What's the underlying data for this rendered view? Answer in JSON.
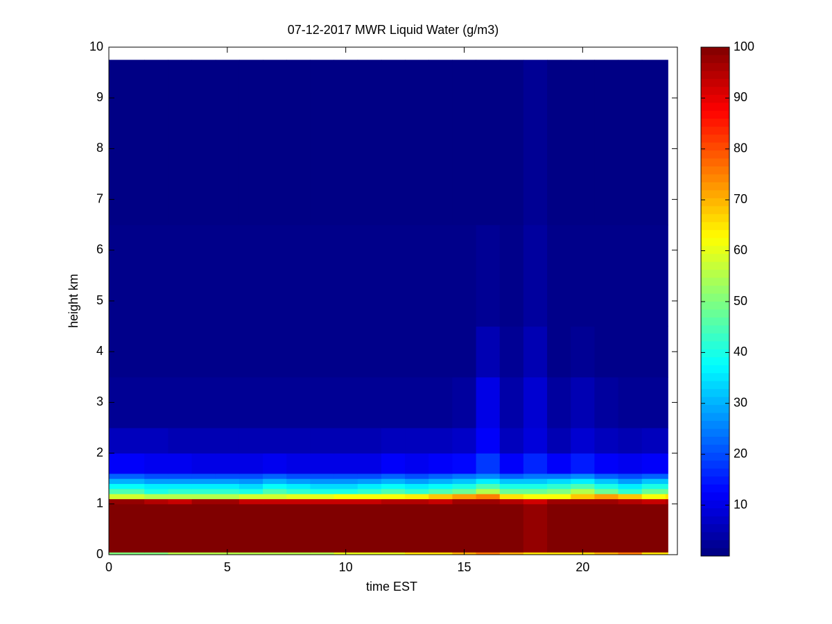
{
  "chart_data": {
    "type": "heatmap",
    "title": "07-12-2017 MWR Liquid Water (g/m3)",
    "x_label": "time EST",
    "y_label": "height km",
    "xlim": [
      0,
      24
    ],
    "ylim": [
      0,
      10
    ],
    "xticks": [
      0,
      5,
      10,
      15,
      20
    ],
    "yticks": [
      0,
      1,
      2,
      3,
      4,
      5,
      6,
      7,
      8,
      9,
      10
    ],
    "colormap": "jet",
    "clim": [
      0,
      100
    ],
    "cticks": [
      10,
      20,
      30,
      40,
      50,
      60,
      70,
      80,
      90,
      100
    ],
    "xbins": [
      0,
      1.5,
      2.5,
      3.5,
      4.5,
      5.5,
      6.5,
      7.5,
      8.5,
      9.5,
      10.5,
      11.5,
      12.5,
      13.5,
      14.5,
      15.5,
      16.5,
      17.5,
      18.5,
      19.5,
      20.5,
      21.5,
      22.5,
      23.5,
      23.6
    ],
    "ybins": [
      0,
      0.05,
      1.0,
      1.1,
      1.2,
      1.3,
      1.4,
      1.5,
      1.6,
      2.0,
      2.5,
      3.5,
      4.5,
      6.5,
      9.75
    ],
    "z": [
      [
        50,
        50,
        55,
        55,
        55,
        55,
        55,
        55,
        55,
        60,
        60,
        60,
        65,
        65,
        70,
        75,
        70,
        65,
        65,
        65,
        70,
        75,
        65,
        65
      ],
      [
        100,
        100,
        100,
        100,
        100,
        100,
        100,
        100,
        100,
        100,
        100,
        100,
        100,
        100,
        100,
        100,
        100,
        98,
        100,
        100,
        100,
        100,
        100,
        100
      ],
      [
        98,
        95,
        93,
        97,
        97,
        93,
        93,
        93,
        93,
        93,
        93,
        95,
        95,
        93,
        97,
        97,
        95,
        92,
        97,
        97,
        97,
        95,
        93,
        95
      ],
      [
        58,
        55,
        55,
        55,
        55,
        58,
        58,
        60,
        60,
        62,
        62,
        62,
        64,
        68,
        72,
        75,
        65,
        62,
        62,
        68,
        72,
        68,
        62,
        65
      ],
      [
        45,
        40,
        42,
        42,
        42,
        40,
        45,
        42,
        40,
        40,
        42,
        45,
        42,
        45,
        48,
        55,
        48,
        48,
        50,
        55,
        48,
        42,
        48,
        48
      ],
      [
        38,
        36,
        36,
        36,
        36,
        34,
        38,
        36,
        34,
        34,
        36,
        38,
        36,
        38,
        40,
        45,
        40,
        40,
        42,
        45,
        40,
        36,
        40,
        40
      ],
      [
        30,
        28,
        28,
        28,
        28,
        27,
        30,
        28,
        27,
        27,
        28,
        30,
        28,
        30,
        32,
        36,
        32,
        32,
        34,
        36,
        32,
        28,
        32,
        32
      ],
      [
        22,
        20,
        20,
        20,
        20,
        20,
        22,
        20,
        20,
        20,
        20,
        22,
        20,
        22,
        24,
        26,
        22,
        24,
        24,
        26,
        22,
        20,
        22,
        22
      ],
      [
        12,
        11,
        11,
        10,
        10,
        10,
        11,
        10,
        10,
        10,
        10,
        12,
        11,
        12,
        13,
        18,
        12,
        16,
        12,
        15,
        12,
        11,
        12,
        12
      ],
      [
        6,
        6,
        5,
        5,
        5,
        5,
        5,
        5,
        5,
        5,
        5,
        6,
        6,
        6,
        7,
        12,
        6,
        9,
        5,
        8,
        6,
        5,
        6,
        6
      ],
      [
        2,
        2,
        2,
        2,
        2,
        2,
        2,
        2,
        2,
        2,
        2,
        2,
        2,
        2,
        3,
        10,
        4,
        8,
        3,
        5,
        3,
        2,
        2,
        2
      ],
      [
        1,
        1,
        1,
        1,
        1,
        1,
        1,
        1,
        1,
        1,
        1,
        1,
        1,
        1,
        1,
        5,
        2,
        5,
        1,
        2,
        1,
        1,
        1,
        1
      ],
      [
        1,
        1,
        1,
        1,
        1,
        1,
        1,
        1,
        1,
        1,
        1,
        1,
        1,
        1,
        1,
        2,
        1,
        3,
        1,
        1,
        1,
        1,
        1,
        1
      ],
      [
        0.5,
        0.5,
        0.5,
        0.5,
        0.5,
        0.5,
        0.5,
        0.5,
        0.5,
        0.5,
        0.5,
        0.5,
        0.5,
        0.5,
        0.5,
        0.5,
        0.5,
        2,
        0.5,
        0.5,
        0.5,
        0.5,
        0.5,
        0.5
      ]
    ]
  }
}
